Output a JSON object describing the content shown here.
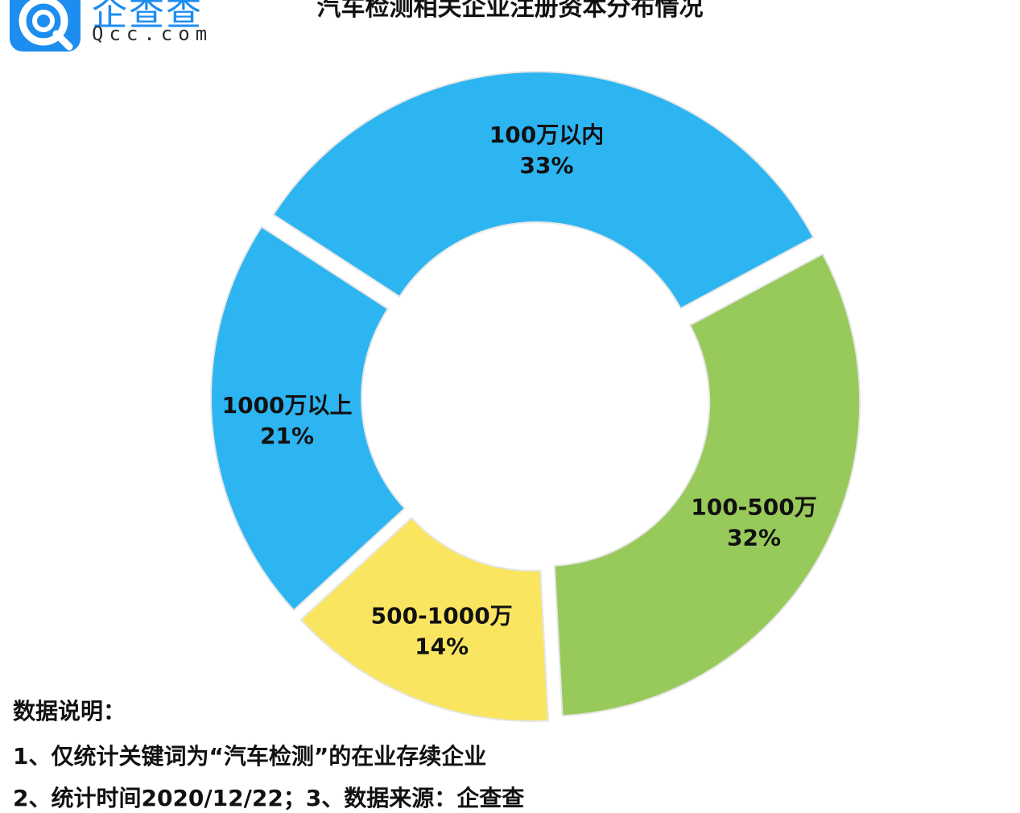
{
  "logo": {
    "cn": "企查查",
    "en": "Qcc.com"
  },
  "title": "汽车检测相关企业注册资本分布情况",
  "chart_data": {
    "type": "pie",
    "donut": true,
    "title": "汽车检测相关企业注册资本分布情况",
    "series": [
      {
        "label": "100万以内",
        "pct_label": "33%",
        "value": 33,
        "color": "#2db5f2"
      },
      {
        "label": "100-500万",
        "pct_label": "32%",
        "value": 32,
        "color": "#98c95b"
      },
      {
        "label": "500-1000万",
        "pct_label": "14%",
        "value": 14,
        "color": "#fae560"
      },
      {
        "label": "1000万以上",
        "pct_label": "21%",
        "value": 21,
        "color": "#2db5f2"
      }
    ]
  },
  "notes": {
    "heading": "数据说明：",
    "line1": "1、仅统计关键词为“汽车检测”的在业存续企业",
    "line2": "2、统计时间2020/12/22；3、数据来源：企查查"
  }
}
